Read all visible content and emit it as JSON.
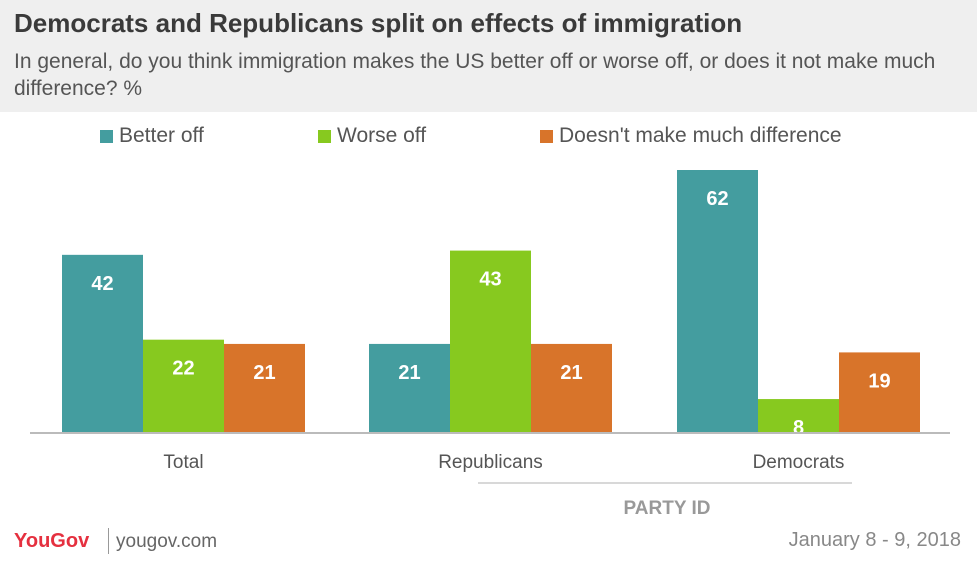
{
  "chart_data": {
    "type": "bar",
    "title": "Democrats and Republicans split on effects of immigration",
    "subtitle": "In general, do you think immigration makes the US better off or worse off, or does it not make much difference? %",
    "categories": [
      "Total",
      "Republicans",
      "Democrats"
    ],
    "group_label": "PARTY ID",
    "series": [
      {
        "name": "Better off",
        "color": "#449d9f",
        "values": [
          42,
          21,
          62
        ]
      },
      {
        "name": "Worse off",
        "color": "#87c91f",
        "values": [
          22,
          43,
          8
        ]
      },
      {
        "name": "Doesn't make much difference",
        "color": "#d8742a",
        "values": [
          21,
          21,
          19
        ]
      }
    ],
    "ylim": [
      0,
      62
    ],
    "grid": false,
    "legend": "top",
    "data_labels": true,
    "label_color": "#ffffff",
    "axis_color": "#bbbbbb",
    "tick_color": "#555555"
  },
  "footer": {
    "brand": "YouGov",
    "site": "yougov.com",
    "date": "January 8 - 9, 2018",
    "brand_color": "#e5303f"
  }
}
